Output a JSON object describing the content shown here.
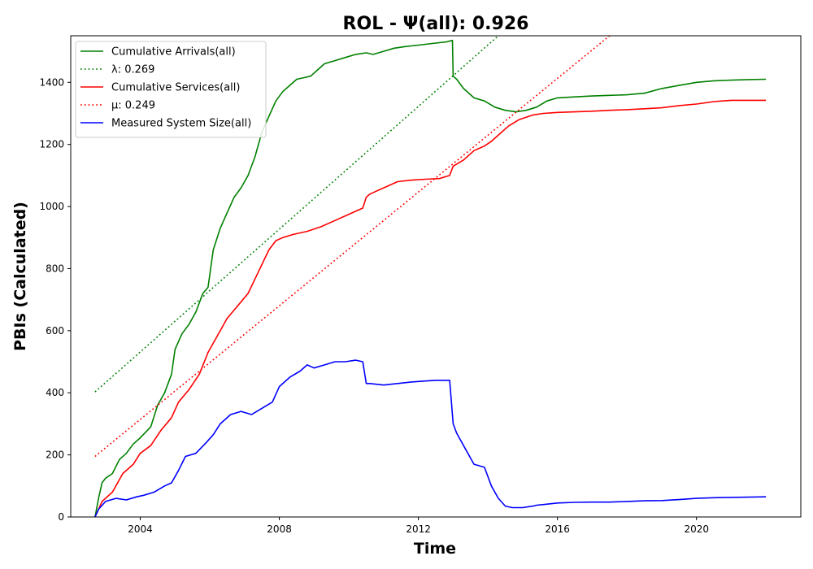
{
  "chart_data": {
    "type": "line",
    "title": "ROL -  Ψ(all): 0.926",
    "xlabel": "Time",
    "ylabel": "PBIs (Calculated)",
    "xlim": [
      2002.0,
      2023.0
    ],
    "ylim": [
      0,
      1550
    ],
    "xticks": [
      2004,
      2008,
      2012,
      2016,
      2020
    ],
    "yticks": [
      0,
      200,
      400,
      600,
      800,
      1000,
      1200,
      1400
    ],
    "legend_position": "upper-left",
    "series": [
      {
        "name": "Cumulative Arrivals(all)",
        "legend_label": "Cumulative Arrivals(all)",
        "style": "solid",
        "color": "#008000",
        "x": [
          2002.7,
          2002.8,
          2002.9,
          2003.0,
          2003.2,
          2003.4,
          2003.6,
          2003.8,
          2004.0,
          2004.3,
          2004.5,
          2004.7,
          2004.9,
          2005.0,
          2005.2,
          2005.4,
          2005.6,
          2005.8,
          2005.95,
          2006.1,
          2006.3,
          2006.5,
          2006.7,
          2006.9,
          2007.1,
          2007.3,
          2007.5,
          2007.7,
          2007.9,
          2008.1,
          2008.3,
          2008.5,
          2008.7,
          2008.9,
          2009.1,
          2009.3,
          2009.6,
          2009.9,
          2010.2,
          2010.5,
          2010.7,
          2011.0,
          2011.3,
          2011.6,
          2012.0,
          2012.4,
          2012.8,
          2012.98,
          2013.0,
          2013.1,
          2013.3,
          2013.6,
          2013.9,
          2014.2,
          2014.5,
          2014.8,
          2015.1,
          2015.4,
          2015.7,
          2016.0,
          2016.5,
          2017.0,
          2017.5,
          2018.0,
          2018.5,
          2019.0,
          2019.5,
          2020.0,
          2020.5,
          2021.0,
          2021.5,
          2022.0
        ],
        "y": [
          0,
          60,
          110,
          125,
          140,
          185,
          205,
          235,
          255,
          290,
          360,
          400,
          460,
          540,
          590,
          620,
          660,
          720,
          740,
          860,
          930,
          980,
          1030,
          1060,
          1100,
          1160,
          1240,
          1290,
          1340,
          1370,
          1390,
          1410,
          1415,
          1420,
          1440,
          1460,
          1470,
          1480,
          1490,
          1495,
          1490,
          1500,
          1510,
          1515,
          1520,
          1525,
          1530,
          1535,
          1420,
          1410,
          1380,
          1350,
          1340,
          1320,
          1310,
          1305,
          1310,
          1320,
          1340,
          1350,
          1353,
          1356,
          1358,
          1360,
          1365,
          1380,
          1390,
          1400,
          1405,
          1407,
          1409,
          1410
        ]
      },
      {
        "name": "λ: 0.269",
        "legend_label": "λ: 0.269",
        "style": "dotted",
        "color": "#008000",
        "x": [
          2002.7,
          2014.3
        ],
        "y": [
          403,
          1550
        ]
      },
      {
        "name": "Cumulative Services(all)",
        "legend_label": "Cumulative Services(all)",
        "style": "solid",
        "color": "#ff0000",
        "x": [
          2002.7,
          2002.9,
          2003.2,
          2003.5,
          2003.8,
          2004.0,
          2004.3,
          2004.6,
          2004.9,
          2005.1,
          2005.4,
          2005.7,
          2005.95,
          2006.2,
          2006.5,
          2006.8,
          2007.1,
          2007.4,
          2007.7,
          2007.9,
          2008.1,
          2008.4,
          2008.8,
          2009.2,
          2009.6,
          2010.0,
          2010.4,
          2010.5,
          2010.6,
          2011.0,
          2011.4,
          2011.8,
          2012.2,
          2012.6,
          2012.9,
          2013.0,
          2013.3,
          2013.6,
          2013.9,
          2014.1,
          2014.4,
          2014.6,
          2014.9,
          2015.3,
          2015.6,
          2016.0,
          2016.5,
          2017.0,
          2017.5,
          2018.0,
          2018.5,
          2019.0,
          2019.5,
          2020.0,
          2020.5,
          2021.0,
          2021.5,
          2022.0
        ],
        "y": [
          0,
          50,
          80,
          140,
          170,
          205,
          230,
          280,
          320,
          370,
          410,
          460,
          530,
          580,
          640,
          680,
          720,
          790,
          860,
          890,
          900,
          910,
          920,
          935,
          955,
          975,
          995,
          1030,
          1040,
          1060,
          1080,
          1085,
          1088,
          1090,
          1100,
          1130,
          1150,
          1180,
          1195,
          1210,
          1240,
          1260,
          1280,
          1295,
          1300,
          1303,
          1305,
          1307,
          1310,
          1312,
          1315,
          1318,
          1325,
          1330,
          1338,
          1342,
          1342,
          1342
        ]
      },
      {
        "name": "μ: 0.249",
        "legend_label": "μ: 0.249",
        "style": "dotted",
        "color": "#ff0000",
        "x": [
          2002.7,
          2017.5
        ],
        "y": [
          195,
          1550
        ]
      },
      {
        "name": "Measured System Size(all)",
        "legend_label": "Measured System Size(all)",
        "style": "solid",
        "color": "#0000ff",
        "x": [
          2002.7,
          2002.8,
          2003.0,
          2003.3,
          2003.6,
          2003.9,
          2004.1,
          2004.4,
          2004.7,
          2004.9,
          2005.1,
          2005.3,
          2005.6,
          2005.9,
          2006.1,
          2006.3,
          2006.6,
          2006.9,
          2007.2,
          2007.5,
          2007.8,
          2008.0,
          2008.3,
          2008.6,
          2008.8,
          2009.0,
          2009.3,
          2009.6,
          2009.9,
          2010.2,
          2010.4,
          2010.5,
          2010.6,
          2011.0,
          2011.4,
          2011.8,
          2012.2,
          2012.5,
          2012.9,
          2013.0,
          2013.1,
          2013.3,
          2013.6,
          2013.9,
          2014.1,
          2014.3,
          2014.5,
          2014.7,
          2015.0,
          2015.3,
          2015.4,
          2015.6,
          2016.0,
          2016.5,
          2017.0,
          2017.5,
          2018.0,
          2018.5,
          2019.0,
          2019.5,
          2020.0,
          2020.5,
          2021.0,
          2021.5,
          2022.0
        ],
        "y": [
          0,
          25,
          50,
          60,
          55,
          65,
          70,
          80,
          100,
          110,
          150,
          195,
          205,
          240,
          265,
          300,
          330,
          340,
          330,
          350,
          370,
          420,
          450,
          470,
          490,
          480,
          490,
          500,
          500,
          505,
          500,
          430,
          430,
          425,
          430,
          435,
          438,
          440,
          440,
          300,
          270,
          230,
          170,
          160,
          100,
          60,
          35,
          30,
          30,
          35,
          38,
          40,
          45,
          47,
          48,
          48,
          50,
          52,
          53,
          56,
          60,
          62,
          63,
          64,
          65
        ]
      }
    ]
  }
}
